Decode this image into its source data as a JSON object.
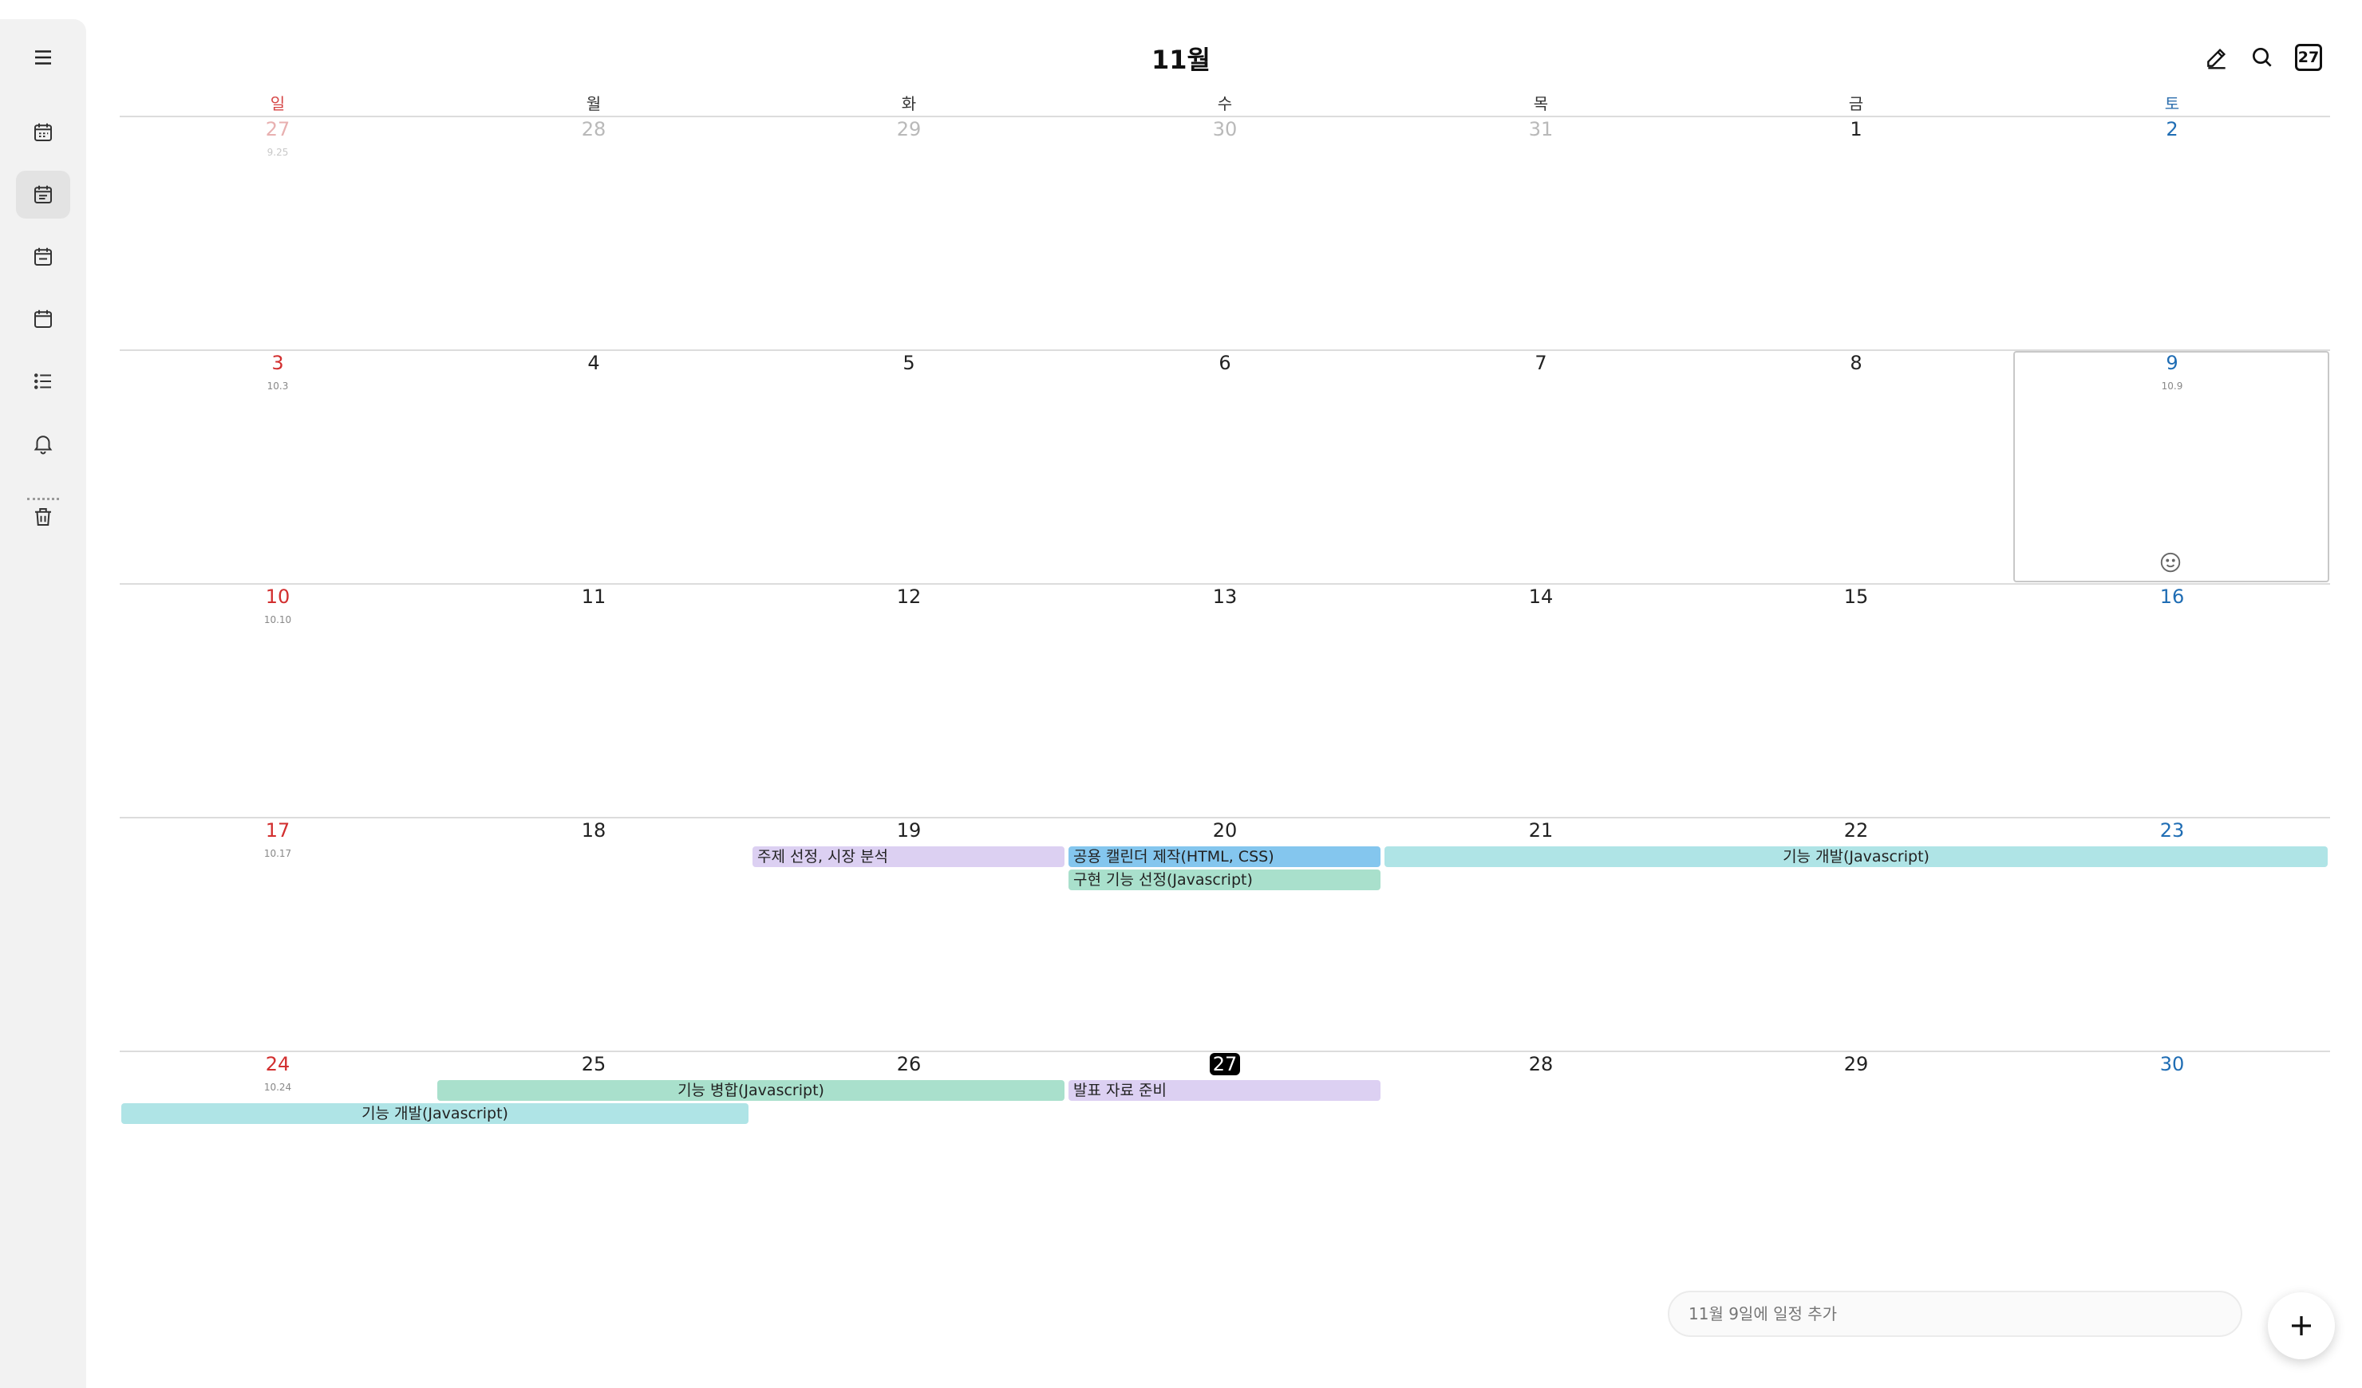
{
  "header": {
    "month_title": "11월"
  },
  "weekdays": [
    "일",
    "월",
    "화",
    "수",
    "목",
    "금",
    "토"
  ],
  "weeks": [
    {
      "days": [
        "27",
        "28",
        "29",
        "30",
        "31",
        "1",
        "2"
      ],
      "lunar": "9.25"
    },
    {
      "days": [
        "3",
        "4",
        "5",
        "6",
        "7",
        "8",
        "9"
      ],
      "lunar": "10.3",
      "lunar_sat": "10.9"
    },
    {
      "days": [
        "10",
        "11",
        "12",
        "13",
        "14",
        "15",
        "16"
      ],
      "lunar": "10.10"
    },
    {
      "days": [
        "17",
        "18",
        "19",
        "20",
        "21",
        "22",
        "23"
      ],
      "lunar": "10.17"
    },
    {
      "days": [
        "24",
        "25",
        "26",
        "27",
        "28",
        "29",
        "30"
      ],
      "lunar": "10.24"
    }
  ],
  "today": "27",
  "events": [
    {
      "label": "주제 선정, 시장 분석",
      "color": "#dcd0f2"
    },
    {
      "label": "공용 캘린더 제작(HTML, CSS)",
      "color": "#84c6ee"
    },
    {
      "label": "구현 기능 선정(Javascript)",
      "color": "#a9e0cc"
    },
    {
      "label": "기능 개발(Javascript)",
      "color": "#afe4e6"
    },
    {
      "label": "기능 병합(Javascript)",
      "color": "#a9e0cc"
    },
    {
      "label": "발표 자료 준비",
      "color": "#dcd0f2"
    },
    {
      "label": "기능 개발(Javascript)",
      "color": "#afe4e6"
    }
  ],
  "quick_add": {
    "placeholder": "11월 9일에 일정 추가"
  },
  "sidebar": {
    "icons": [
      "menu-icon",
      "year-view-icon",
      "month-view-icon",
      "week-view-icon",
      "day-view-icon",
      "list-view-icon",
      "notification-icon",
      "trash-icon"
    ]
  },
  "colors": {
    "sunday": "#d22f2f",
    "saturday": "#1f6db4"
  }
}
